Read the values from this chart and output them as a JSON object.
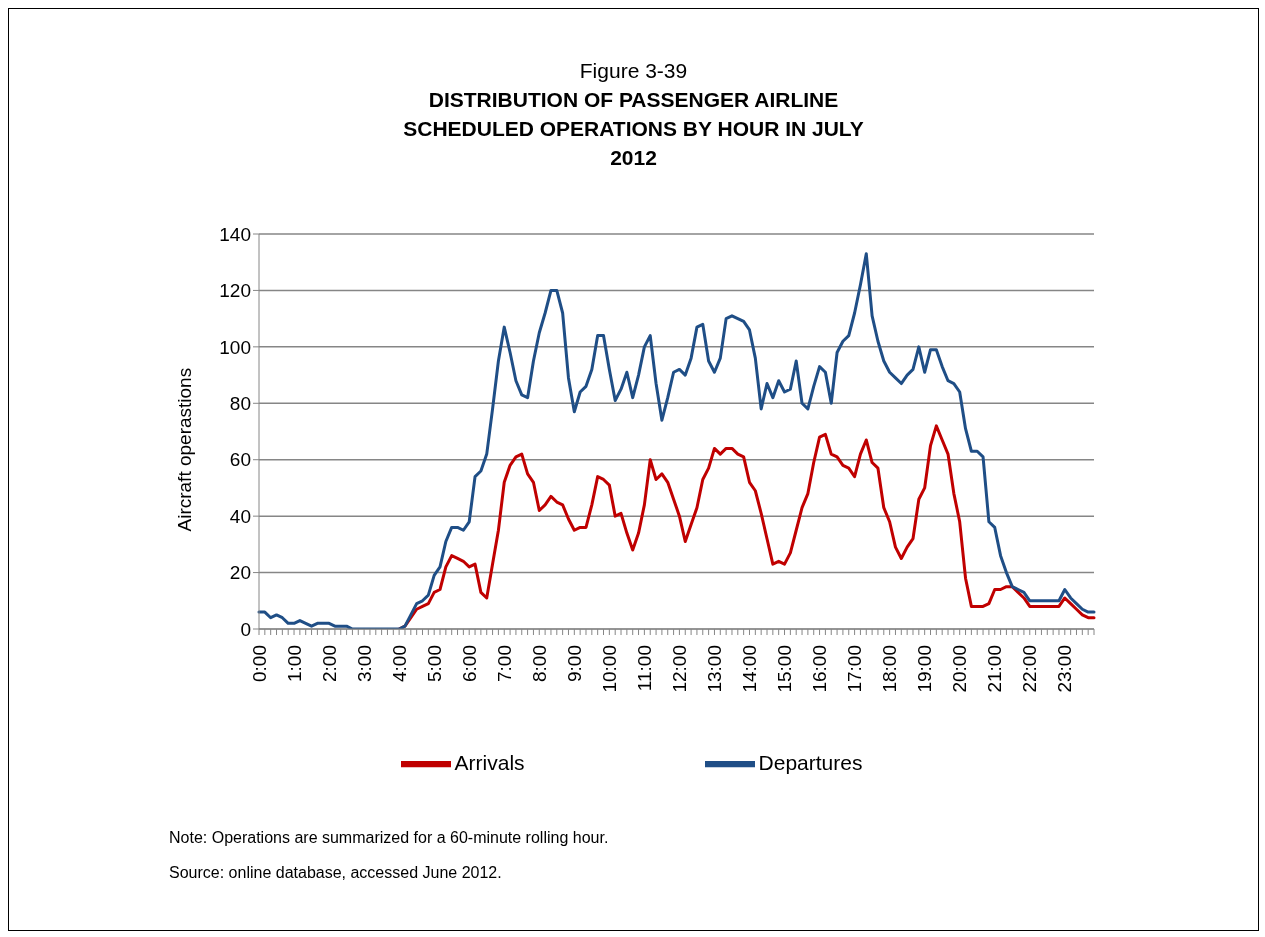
{
  "chart_data": {
    "type": "line",
    "subtitle": "Figure 3-39",
    "title": "DISTRIBUTION OF PASSENGER AIRLINE SCHEDULED OPERATIONS BY HOUR IN JULY 2012",
    "ylabel": "Aircraft operastions",
    "categories": [
      "0:00",
      null,
      null,
      null,
      null,
      null,
      "1:00",
      null,
      null,
      null,
      null,
      null,
      "2:00",
      null,
      null,
      null,
      null,
      null,
      "3:00",
      null,
      null,
      null,
      null,
      null,
      "4:00",
      null,
      null,
      null,
      null,
      null,
      "5:00",
      null,
      null,
      null,
      null,
      null,
      "6:00",
      null,
      null,
      null,
      null,
      null,
      "7:00",
      null,
      null,
      null,
      null,
      null,
      "8:00",
      null,
      null,
      null,
      null,
      null,
      "9:00",
      null,
      null,
      null,
      null,
      null,
      "10:00",
      null,
      null,
      null,
      null,
      null,
      "11:00",
      null,
      null,
      null,
      null,
      null,
      "12:00",
      null,
      null,
      null,
      null,
      null,
      "13:00",
      null,
      null,
      null,
      null,
      null,
      "14:00",
      null,
      null,
      null,
      null,
      null,
      "15:00",
      null,
      null,
      null,
      null,
      null,
      "16:00",
      null,
      null,
      null,
      null,
      null,
      "17:00",
      null,
      null,
      null,
      null,
      null,
      "18:00",
      null,
      null,
      null,
      null,
      null,
      "19:00",
      null,
      null,
      null,
      null,
      null,
      "20:00",
      null,
      null,
      null,
      null,
      null,
      "21:00",
      null,
      null,
      null,
      null,
      null,
      "22:00",
      null,
      null,
      null,
      null,
      null,
      "23:00",
      null,
      null,
      null,
      null,
      null
    ],
    "series": [
      {
        "name": "Arrivals",
        "color": "#c00000",
        "values": [
          null,
          null,
          null,
          null,
          null,
          null,
          null,
          null,
          null,
          null,
          null,
          null,
          null,
          null,
          null,
          null,
          null,
          null,
          null,
          null,
          null,
          null,
          null,
          null,
          0,
          1,
          4,
          7,
          8,
          9,
          13,
          14,
          22,
          26,
          25,
          24,
          22,
          23,
          13,
          11,
          23,
          35,
          52,
          58,
          61,
          62,
          55,
          52,
          42,
          44,
          47,
          45,
          44,
          39,
          35,
          36,
          36,
          44,
          54,
          53,
          51,
          40,
          41,
          34,
          28,
          34,
          44,
          60,
          53,
          55,
          52,
          46,
          40,
          31,
          37,
          43,
          53,
          57,
          64,
          62,
          64,
          64,
          62,
          61,
          52,
          49,
          41,
          32,
          23,
          24,
          23,
          27,
          35,
          43,
          48,
          59,
          68,
          69,
          62,
          61,
          58,
          57,
          54,
          62,
          67,
          59,
          57,
          43,
          38,
          29,
          25,
          29,
          32,
          46,
          50,
          65,
          72,
          67,
          62,
          48,
          38,
          18,
          8,
          8,
          8,
          9,
          14,
          14,
          15,
          15,
          13,
          11,
          8,
          8,
          8,
          8,
          8,
          8,
          11,
          9,
          7,
          5,
          4,
          4
        ]
      },
      {
        "name": "Departures",
        "color": "#1f4e86",
        "values": [
          6,
          6,
          4,
          5,
          4,
          2,
          2,
          3,
          2,
          1,
          2,
          2,
          2,
          1,
          1,
          1,
          0,
          0,
          0,
          0,
          0,
          0,
          0,
          0,
          0,
          1,
          5,
          9,
          10,
          12,
          19,
          22,
          31,
          36,
          36,
          35,
          38,
          54,
          56,
          62,
          78,
          95,
          107,
          98,
          88,
          83,
          82,
          95,
          105,
          112,
          120,
          120,
          112,
          89,
          77,
          84,
          86,
          92,
          104,
          104,
          92,
          81,
          85,
          91,
          82,
          90,
          100,
          104,
          87,
          74,
          82,
          91,
          92,
          90,
          96,
          107,
          108,
          95,
          91,
          96,
          110,
          111,
          110,
          109,
          106,
          96,
          78,
          87,
          82,
          88,
          84,
          85,
          95,
          80,
          78,
          86,
          93,
          91,
          80,
          98,
          102,
          104,
          112,
          122,
          133,
          111,
          102,
          95,
          91,
          89,
          87,
          90,
          92,
          100,
          91,
          99,
          99,
          93,
          88,
          87,
          84,
          71,
          63,
          63,
          61,
          38,
          36,
          26,
          20,
          15,
          14,
          13,
          10,
          10,
          10,
          10,
          10,
          10,
          14,
          11,
          9,
          7,
          6,
          6
        ]
      }
    ],
    "ylim": [
      0,
      140
    ],
    "yticks": [
      0,
      20,
      40,
      60,
      80,
      100,
      120,
      140
    ],
    "grid": "y",
    "legend": "bottom",
    "marker": "none",
    "line_style": "solid",
    "annotations": [
      "Note:  Operations are summarized for a 60-minute rolling hour.",
      "Source:  online database, accessed June 2012."
    ]
  }
}
